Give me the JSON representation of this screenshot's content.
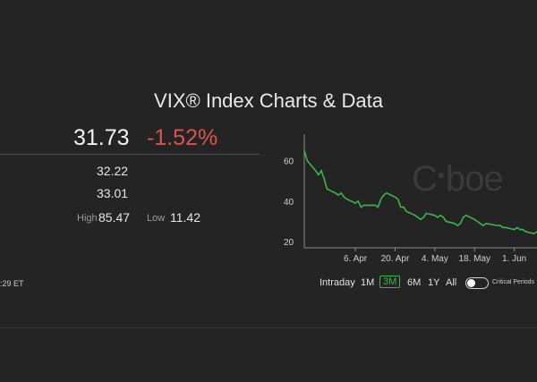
{
  "page": {
    "title": "VIX® Index Charts & Data"
  },
  "quote": {
    "price": "31.73",
    "change": "-1.52%",
    "prev_close": "32.22",
    "open": "33.01",
    "high_label": "High",
    "high": "85.47",
    "low_label": "Low",
    "low": "11.42",
    "time_fragment": ":29 ET"
  },
  "brand": {
    "text": "Cboe"
  },
  "range_buttons": [
    "Intraday",
    "1M",
    "3M",
    "6M",
    "1Y",
    "All"
  ],
  "active_range": "3M",
  "critical_periods": {
    "label": "Critical Periods",
    "on": false
  },
  "colors": {
    "accent": "#3bb54a",
    "negative": "#d9534f",
    "background": "#242424"
  },
  "chart_data": {
    "type": "line",
    "x_ticks": [
      "6. Apr",
      "20. Apr",
      "4. May",
      "18. May",
      "1. Jun"
    ],
    "y_ticks": [
      20,
      40,
      60
    ],
    "ylim": [
      17,
      73
    ],
    "grid": false,
    "series": [
      {
        "x": [
          "Mar 19",
          "Mar 20",
          "Mar 23",
          "Mar 24",
          "Mar 25",
          "Mar 26",
          "Mar 27",
          "Mar 30",
          "Mar 31",
          "Apr 1",
          "Apr 2",
          "Apr 3",
          "Apr 6",
          "Apr 7",
          "Apr 8",
          "Apr 9",
          "Apr 13",
          "Apr 14",
          "Apr 15",
          "Apr 16",
          "Apr 17",
          "Apr 20",
          "Apr 21",
          "Apr 22",
          "Apr 23",
          "Apr 24",
          "Apr 27",
          "Apr 28",
          "Apr 29",
          "Apr 30",
          "May 1",
          "May 4",
          "May 5",
          "May 6",
          "May 7",
          "May 8",
          "May 11",
          "May 12",
          "May 13",
          "May 14",
          "May 15",
          "May 18",
          "May 19",
          "May 20",
          "May 21",
          "May 22",
          "May 26",
          "May 27",
          "May 28",
          "May 29",
          "Jun 1",
          "Jun 2",
          "Jun 3",
          "Jun 4",
          "Jun 5",
          "Jun 8",
          "Jun 9"
        ],
        "values": [
          65,
          60,
          55,
          53,
          55,
          51,
          46,
          44,
          43,
          44,
          42,
          41,
          39,
          40,
          37,
          38,
          38,
          37,
          41,
          43,
          44,
          42,
          41,
          37,
          37,
          35,
          33,
          32,
          31,
          32,
          34,
          33,
          32,
          33,
          32,
          30,
          29,
          28,
          29,
          32,
          33,
          31,
          30,
          29,
          28,
          29,
          28,
          28,
          27,
          27,
          26,
          27,
          26,
          26,
          25,
          24,
          25
        ]
      }
    ]
  }
}
